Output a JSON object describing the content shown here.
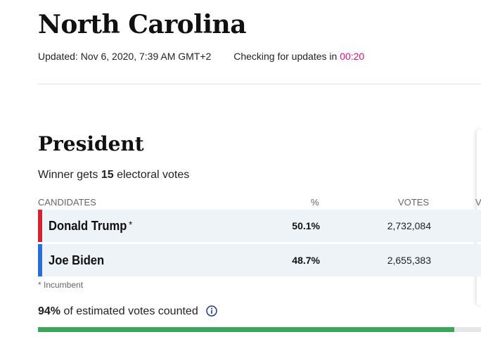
{
  "page": {
    "title": "North Carolina",
    "updated_text": "Updated: Nov 6, 2020, 7:39 AM GMT+2",
    "checking_text": "Checking for updates in",
    "countdown": "00:20"
  },
  "race": {
    "title": "President",
    "winner_prefix": "Winner gets",
    "electoral_votes": "15",
    "winner_suffix": "electoral votes"
  },
  "table": {
    "headers": {
      "candidates": "CANDIDATES",
      "percent": "%",
      "votes": "VOTES",
      "extra": "V"
    },
    "rows": [
      {
        "name": "Donald Trump",
        "incumbent_marker": "*",
        "percent": "50.1%",
        "votes": "2,732,084",
        "party_color": "#d22532"
      },
      {
        "name": "Joe Biden",
        "incumbent_marker": "",
        "percent": "48.7%",
        "votes": "2,655,383",
        "party_color": "#2b6fd6"
      }
    ]
  },
  "incumbent_note": "* Incumbent",
  "counted": {
    "percent": "94%",
    "text": "of estimated votes counted",
    "progress_fraction": 0.94,
    "icon": "info-icon"
  },
  "colors": {
    "accent_pink": "#d6107e",
    "progress_green": "#3ca55c",
    "row_background": "#eef3f7"
  }
}
